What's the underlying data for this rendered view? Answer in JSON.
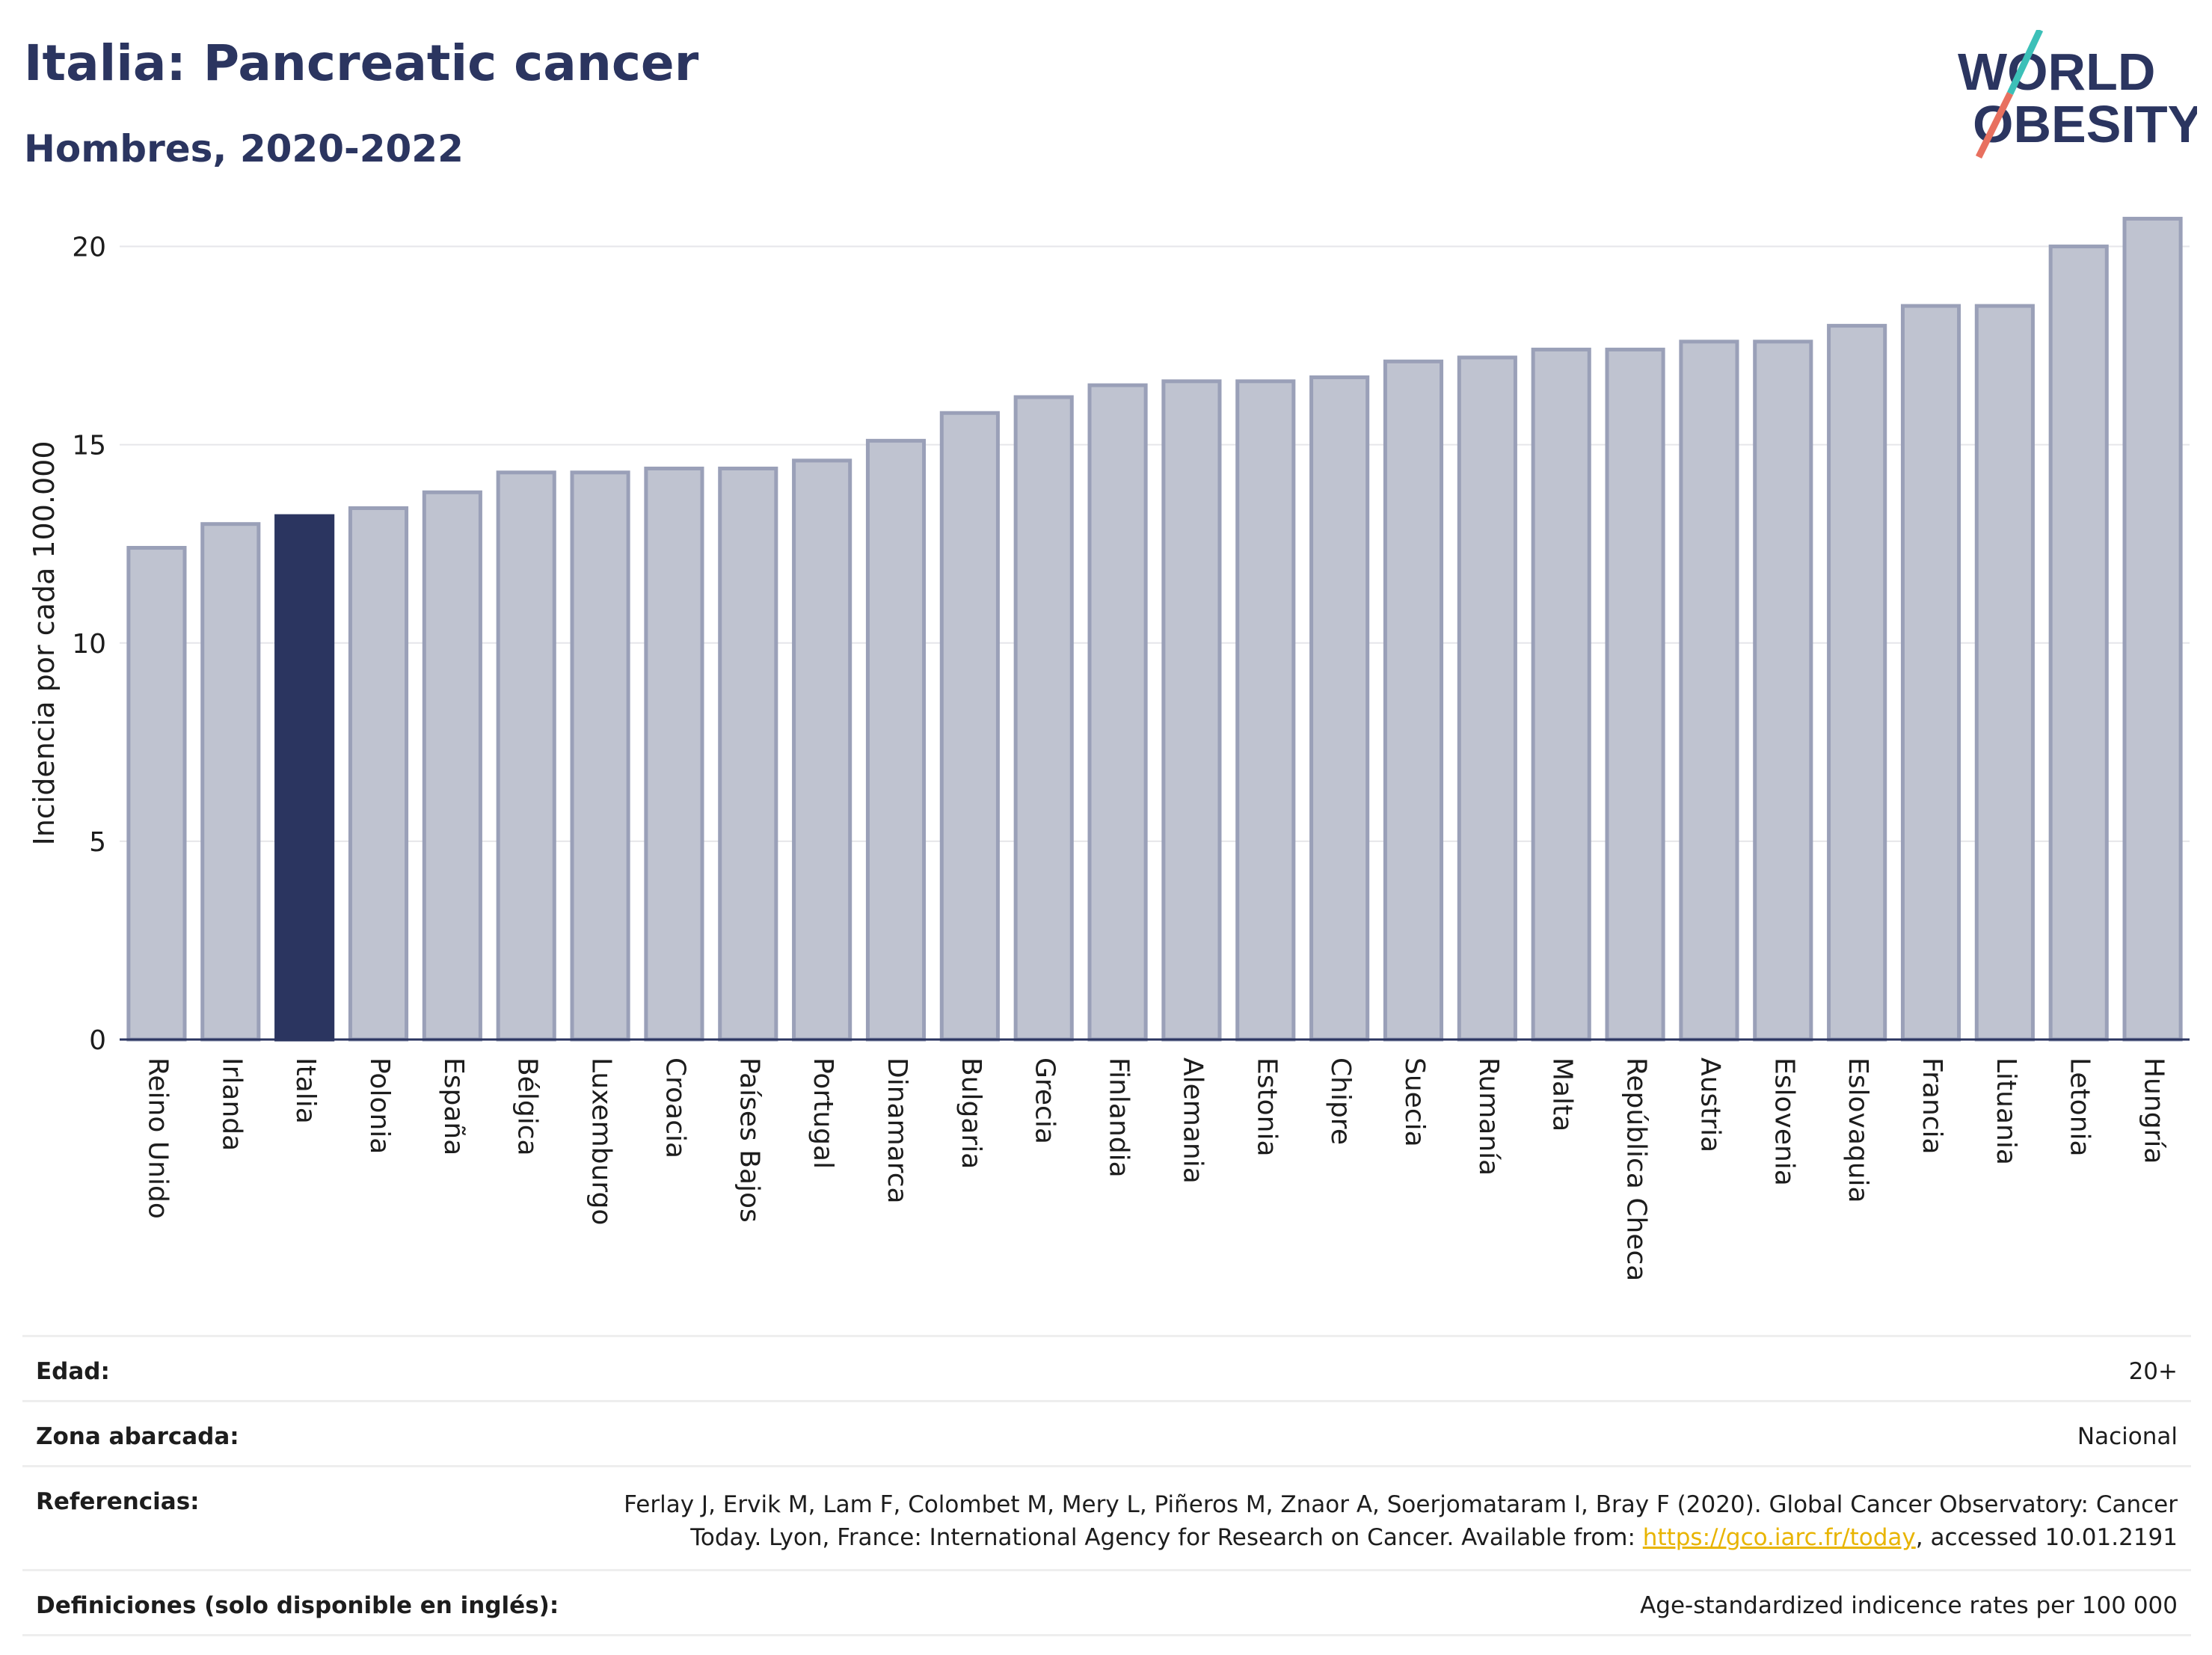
{
  "header": {
    "title": "Italia: Pancreatic cancer",
    "subtitle": "Hombres, 2020-2022"
  },
  "logo": {
    "line1": "WORLD",
    "line2": "OBESITY",
    "colors": {
      "text": "#2b3560",
      "slash_top": "#3cc0b8",
      "slash_bottom": "#e8705f"
    }
  },
  "chart_data": {
    "type": "bar",
    "ylabel": "Incidencia por cada 100.000",
    "xlabel": "",
    "ylim": [
      0,
      21.5
    ],
    "yticks": [
      0,
      5,
      10,
      15,
      20
    ],
    "grid": true,
    "highlight": "Italia",
    "colors": {
      "bar": "#bfc3d0",
      "bar_edge": "#9aa0b8",
      "highlight": "#2b3560",
      "grid": "#e6e6ea",
      "axis": "#2b3560"
    },
    "categories": [
      "Reino Unido",
      "Irlanda",
      "Italia",
      "Polonia",
      "España",
      "Bélgica",
      "Luxemburgo",
      "Croacia",
      "Países Bajos",
      "Portugal",
      "Dinamarca",
      "Bulgaria",
      "Grecia",
      "Finlandia",
      "Alemania",
      "Estonia",
      "Chipre",
      "Suecia",
      "Rumanía",
      "Malta",
      "República Checa",
      "Austria",
      "Eslovenia",
      "Eslovaquia",
      "Francia",
      "Lituania",
      "Letonia",
      "Hungría"
    ],
    "values": [
      12.4,
      13.0,
      13.2,
      13.4,
      13.8,
      14.3,
      14.3,
      14.4,
      14.4,
      14.6,
      15.1,
      15.8,
      16.2,
      16.5,
      16.6,
      16.6,
      16.7,
      17.1,
      17.2,
      17.4,
      17.4,
      17.6,
      17.6,
      18.0,
      18.5,
      18.5,
      20.0,
      20.7
    ]
  },
  "meta": {
    "age_label": "Edad:",
    "age_value": "20+",
    "zone_label": "Zona abarcada:",
    "zone_value": "Nacional",
    "ref_label": "Referencias:",
    "ref_text_before": "Ferlay J, Ervik M, Lam F, Colombet M, Mery L, Piñeros M, Znaor A, Soerjomataram I, Bray F (2020). Global Cancer Observatory: Cancer Today. Lyon, France: International Agency for Research on Cancer. Available from: ",
    "ref_link": "https://gco.iarc.fr/today",
    "ref_text_after": ", accessed 10.01.2191",
    "def_label": "Definiciones (solo disponible en inglés):",
    "def_value": "Age-standardized indicence rates per 100 000"
  }
}
